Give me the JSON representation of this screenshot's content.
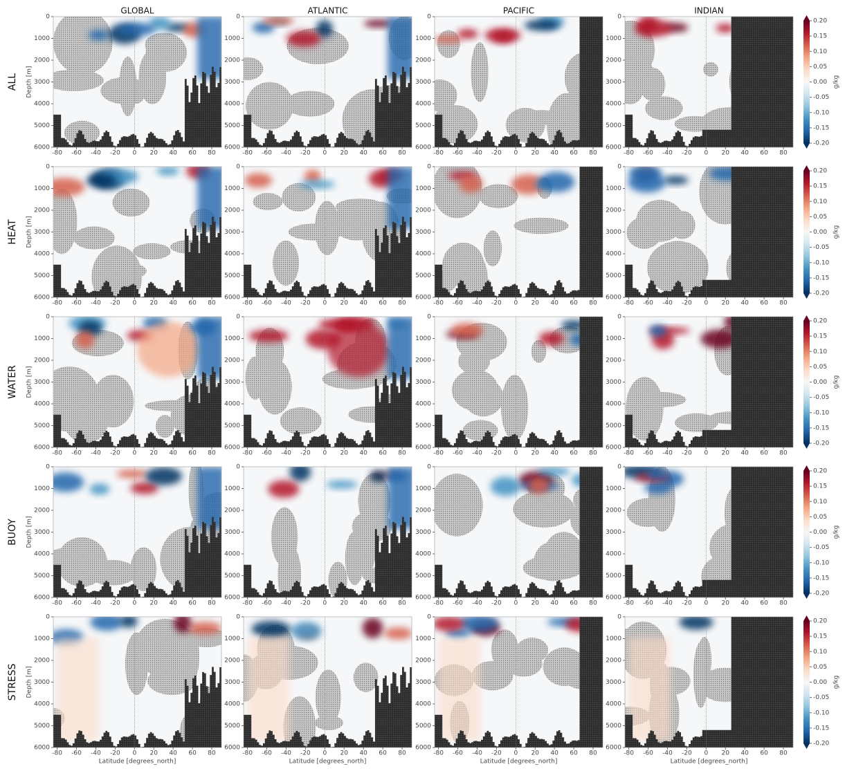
{
  "chart_data": {
    "type": "heatmap-grid",
    "columns": [
      "GLOBAL",
      "ATLANTIC",
      "PACIFIC",
      "INDIAN"
    ],
    "rows": [
      "ALL",
      "HEAT",
      "WATER",
      "BUOY",
      "STRESS"
    ],
    "xlabel": "Latitude [degrees_north]",
    "ylabel": "Depth [m]",
    "xlim": [
      -84,
      90
    ],
    "xticks": [
      -80,
      -60,
      -40,
      -20,
      0,
      20,
      40,
      60,
      80
    ],
    "ylim": [
      6000,
      0
    ],
    "yticks": [
      0,
      1000,
      2000,
      3000,
      4000,
      5000,
      6000
    ],
    "colorbar": {
      "label": "g/kg",
      "lim": [
        -0.2,
        0.2
      ],
      "ticks": [
        {
          "value": 0.2,
          "label": "0.20"
        },
        {
          "value": 0.15,
          "label": "0.15"
        },
        {
          "value": 0.1,
          "label": "0.10"
        },
        {
          "value": 0.05,
          "label": "0.05"
        },
        {
          "value": 0,
          "label": "0.00"
        },
        {
          "value": -0.05,
          "label": "-0.05"
        },
        {
          "value": -0.1,
          "label": "-0.10"
        },
        {
          "value": -0.15,
          "label": "-0.15"
        },
        {
          "value": -0.2,
          "label": "-0.20"
        }
      ],
      "colors": [
        "#053061",
        "#2166ac",
        "#4393c3",
        "#92c5de",
        "#d1e5f0",
        "#f7f7f7",
        "#fddbc7",
        "#f4a582",
        "#d6604d",
        "#b2182b",
        "#67001f"
      ]
    }
  }
}
